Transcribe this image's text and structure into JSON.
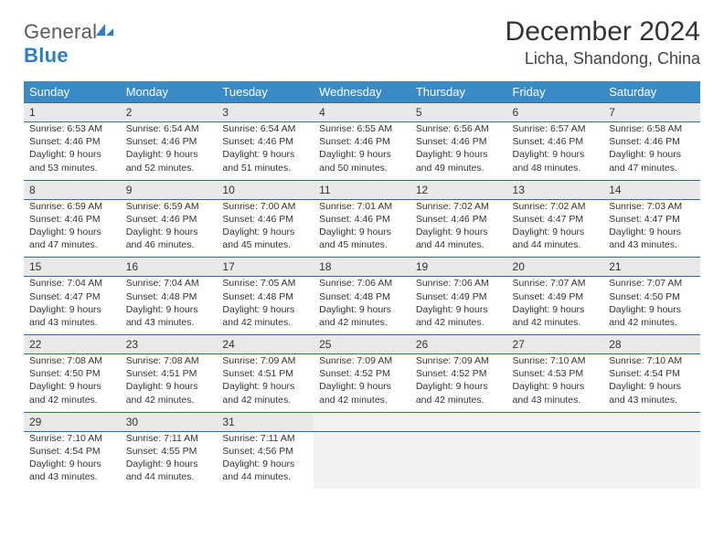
{
  "brand": {
    "word1": "General",
    "word2": "Blue"
  },
  "title": "December 2024",
  "location": "Licha, Shandong, China",
  "colors": {
    "header_bg": "#3a8ac6",
    "header_text": "#ffffff",
    "rule": "#2f6aa0",
    "daynum_bg": "#e9e9e9",
    "empty_bg": "#f3f3f3",
    "text": "#333333",
    "logo_gray": "#5a5a5a",
    "logo_blue": "#2d7fc5"
  },
  "fonts": {
    "title_pt": 30,
    "location_pt": 18,
    "dow_pt": 13,
    "daynum_pt": 12,
    "body_pt": 10.5
  },
  "dow": [
    "Sunday",
    "Monday",
    "Tuesday",
    "Wednesday",
    "Thursday",
    "Friday",
    "Saturday"
  ],
  "weeks": [
    [
      {
        "n": "1",
        "sr": "6:53 AM",
        "ss": "4:46 PM",
        "dl": "9 hours and 53 minutes."
      },
      {
        "n": "2",
        "sr": "6:54 AM",
        "ss": "4:46 PM",
        "dl": "9 hours and 52 minutes."
      },
      {
        "n": "3",
        "sr": "6:54 AM",
        "ss": "4:46 PM",
        "dl": "9 hours and 51 minutes."
      },
      {
        "n": "4",
        "sr": "6:55 AM",
        "ss": "4:46 PM",
        "dl": "9 hours and 50 minutes."
      },
      {
        "n": "5",
        "sr": "6:56 AM",
        "ss": "4:46 PM",
        "dl": "9 hours and 49 minutes."
      },
      {
        "n": "6",
        "sr": "6:57 AM",
        "ss": "4:46 PM",
        "dl": "9 hours and 48 minutes."
      },
      {
        "n": "7",
        "sr": "6:58 AM",
        "ss": "4:46 PM",
        "dl": "9 hours and 47 minutes."
      }
    ],
    [
      {
        "n": "8",
        "sr": "6:59 AM",
        "ss": "4:46 PM",
        "dl": "9 hours and 47 minutes."
      },
      {
        "n": "9",
        "sr": "6:59 AM",
        "ss": "4:46 PM",
        "dl": "9 hours and 46 minutes."
      },
      {
        "n": "10",
        "sr": "7:00 AM",
        "ss": "4:46 PM",
        "dl": "9 hours and 45 minutes."
      },
      {
        "n": "11",
        "sr": "7:01 AM",
        "ss": "4:46 PM",
        "dl": "9 hours and 45 minutes."
      },
      {
        "n": "12",
        "sr": "7:02 AM",
        "ss": "4:46 PM",
        "dl": "9 hours and 44 minutes."
      },
      {
        "n": "13",
        "sr": "7:02 AM",
        "ss": "4:47 PM",
        "dl": "9 hours and 44 minutes."
      },
      {
        "n": "14",
        "sr": "7:03 AM",
        "ss": "4:47 PM",
        "dl": "9 hours and 43 minutes."
      }
    ],
    [
      {
        "n": "15",
        "sr": "7:04 AM",
        "ss": "4:47 PM",
        "dl": "9 hours and 43 minutes."
      },
      {
        "n": "16",
        "sr": "7:04 AM",
        "ss": "4:48 PM",
        "dl": "9 hours and 43 minutes."
      },
      {
        "n": "17",
        "sr": "7:05 AM",
        "ss": "4:48 PM",
        "dl": "9 hours and 42 minutes."
      },
      {
        "n": "18",
        "sr": "7:06 AM",
        "ss": "4:48 PM",
        "dl": "9 hours and 42 minutes."
      },
      {
        "n": "19",
        "sr": "7:06 AM",
        "ss": "4:49 PM",
        "dl": "9 hours and 42 minutes."
      },
      {
        "n": "20",
        "sr": "7:07 AM",
        "ss": "4:49 PM",
        "dl": "9 hours and 42 minutes."
      },
      {
        "n": "21",
        "sr": "7:07 AM",
        "ss": "4:50 PM",
        "dl": "9 hours and 42 minutes."
      }
    ],
    [
      {
        "n": "22",
        "sr": "7:08 AM",
        "ss": "4:50 PM",
        "dl": "9 hours and 42 minutes."
      },
      {
        "n": "23",
        "sr": "7:08 AM",
        "ss": "4:51 PM",
        "dl": "9 hours and 42 minutes."
      },
      {
        "n": "24",
        "sr": "7:09 AM",
        "ss": "4:51 PM",
        "dl": "9 hours and 42 minutes."
      },
      {
        "n": "25",
        "sr": "7:09 AM",
        "ss": "4:52 PM",
        "dl": "9 hours and 42 minutes."
      },
      {
        "n": "26",
        "sr": "7:09 AM",
        "ss": "4:52 PM",
        "dl": "9 hours and 42 minutes."
      },
      {
        "n": "27",
        "sr": "7:10 AM",
        "ss": "4:53 PM",
        "dl": "9 hours and 43 minutes."
      },
      {
        "n": "28",
        "sr": "7:10 AM",
        "ss": "4:54 PM",
        "dl": "9 hours and 43 minutes."
      }
    ],
    [
      {
        "n": "29",
        "sr": "7:10 AM",
        "ss": "4:54 PM",
        "dl": "9 hours and 43 minutes."
      },
      {
        "n": "30",
        "sr": "7:11 AM",
        "ss": "4:55 PM",
        "dl": "9 hours and 44 minutes."
      },
      {
        "n": "31",
        "sr": "7:11 AM",
        "ss": "4:56 PM",
        "dl": "9 hours and 44 minutes."
      },
      null,
      null,
      null,
      null
    ]
  ],
  "labels": {
    "sunrise": "Sunrise:",
    "sunset": "Sunset:",
    "daylight": "Daylight:"
  }
}
